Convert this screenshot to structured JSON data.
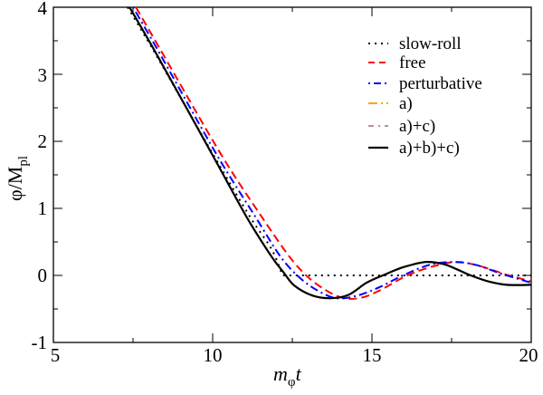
{
  "chart_data": {
    "type": "line",
    "title": "",
    "xlabel": "m_φ t",
    "ylabel": "φ/M_pl",
    "xlim": [
      5,
      20
    ],
    "ylim": [
      -1,
      4
    ],
    "grid": false,
    "legend_position": "upper right",
    "x_ticks": [
      "5",
      "10",
      "15",
      "20"
    ],
    "y_ticks": [
      "-1",
      "0",
      "1",
      "2",
      "3",
      "4"
    ],
    "series": [
      {
        "name": "slow-roll",
        "color": "#000000",
        "style": "dotted",
        "points": [
          [
            7.33,
            4.0
          ],
          [
            8.21,
            3.3
          ],
          [
            10.03,
            1.79
          ],
          [
            11.19,
            0.86
          ],
          [
            11.85,
            0.39
          ],
          [
            12.19,
            0.0
          ],
          [
            20.0,
            0.0
          ]
        ]
      },
      {
        "name": "free",
        "color": "#ff0000",
        "style": "dashed",
        "points": [
          [
            7.59,
            4.0
          ],
          [
            8.44,
            3.3
          ],
          [
            10.28,
            1.79
          ],
          [
            11.56,
            0.86
          ],
          [
            12.41,
            0.28
          ],
          [
            12.98,
            -0.02
          ],
          [
            13.55,
            -0.22
          ],
          [
            14.12,
            -0.34
          ],
          [
            14.69,
            -0.33
          ],
          [
            15.26,
            -0.22
          ],
          [
            16.11,
            0.0
          ],
          [
            16.96,
            0.14
          ],
          [
            17.67,
            0.2
          ],
          [
            18.38,
            0.14
          ],
          [
            19.23,
            0.01
          ],
          [
            20.0,
            -0.09
          ]
        ]
      },
      {
        "name": "perturbative",
        "color": "#0000ff",
        "style": "dash-dot",
        "points": [
          [
            7.5,
            4.0
          ],
          [
            8.35,
            3.3
          ],
          [
            10.14,
            1.79
          ],
          [
            11.36,
            0.86
          ],
          [
            12.13,
            0.28
          ],
          [
            12.7,
            -0.02
          ],
          [
            13.27,
            -0.22
          ],
          [
            13.89,
            -0.34
          ],
          [
            14.55,
            -0.3
          ],
          [
            15.26,
            -0.17
          ],
          [
            15.97,
            0.0
          ],
          [
            16.82,
            0.16
          ],
          [
            17.53,
            0.2
          ],
          [
            18.24,
            0.16
          ],
          [
            19.09,
            0.02
          ],
          [
            20.0,
            -0.11
          ]
        ]
      },
      {
        "name": "a)",
        "color": "#ffa500",
        "style": "dash-dot-long",
        "points": [
          [
            7.39,
            4.0
          ],
          [
            8.24,
            3.3
          ],
          [
            10.0,
            1.79
          ],
          [
            11.08,
            0.86
          ],
          [
            11.85,
            0.28
          ],
          [
            12.22,
            0.05
          ],
          [
            12.56,
            -0.15
          ],
          [
            13.13,
            -0.3
          ],
          [
            13.69,
            -0.34
          ],
          [
            14.26,
            -0.29
          ],
          [
            14.83,
            -0.11
          ],
          [
            15.34,
            0.0
          ],
          [
            15.97,
            0.12
          ],
          [
            16.68,
            0.2
          ],
          [
            17.24,
            0.17
          ],
          [
            17.67,
            0.09
          ],
          [
            18.1,
            0.0
          ],
          [
            18.66,
            -0.09
          ],
          [
            19.23,
            -0.14
          ],
          [
            20.0,
            -0.14
          ]
        ]
      },
      {
        "name": "a)+c)",
        "color": "#bc8f8f",
        "style": "dash-dot",
        "points": [
          [
            7.39,
            4.0
          ],
          [
            8.24,
            3.3
          ],
          [
            10.0,
            1.79
          ],
          [
            11.08,
            0.86
          ],
          [
            11.85,
            0.28
          ],
          [
            12.22,
            0.05
          ],
          [
            12.56,
            -0.15
          ],
          [
            13.13,
            -0.3
          ],
          [
            13.69,
            -0.34
          ],
          [
            14.26,
            -0.29
          ],
          [
            14.83,
            -0.11
          ],
          [
            15.34,
            0.0
          ],
          [
            15.97,
            0.12
          ],
          [
            16.68,
            0.2
          ],
          [
            17.24,
            0.17
          ],
          [
            17.67,
            0.09
          ],
          [
            18.1,
            0.0
          ],
          [
            18.66,
            -0.09
          ],
          [
            19.23,
            -0.14
          ],
          [
            20.0,
            -0.14
          ]
        ]
      },
      {
        "name": "a)+b)+c)",
        "color": "#000000",
        "style": "solid",
        "points": [
          [
            7.39,
            4.0
          ],
          [
            8.24,
            3.3
          ],
          [
            10.0,
            1.79
          ],
          [
            11.08,
            0.86
          ],
          [
            11.85,
            0.28
          ],
          [
            12.22,
            0.05
          ],
          [
            12.56,
            -0.15
          ],
          [
            13.13,
            -0.3
          ],
          [
            13.69,
            -0.34
          ],
          [
            14.26,
            -0.29
          ],
          [
            14.83,
            -0.11
          ],
          [
            15.34,
            0.0
          ],
          [
            15.97,
            0.12
          ],
          [
            16.68,
            0.2
          ],
          [
            17.24,
            0.17
          ],
          [
            17.67,
            0.09
          ],
          [
            18.1,
            0.0
          ],
          [
            18.66,
            -0.09
          ],
          [
            19.23,
            -0.14
          ],
          [
            20.0,
            -0.14
          ]
        ]
      }
    ]
  },
  "axes": {
    "x_tick_labels": [
      "5",
      "10",
      "15",
      "20"
    ],
    "y_tick_labels": [
      "-1",
      "0",
      "1",
      "2",
      "3",
      "4"
    ],
    "xlabel_main": "m",
    "xlabel_sub": "φ",
    "xlabel_tail": "t",
    "ylabel_main": "φ/M",
    "ylabel_sub": "pl"
  },
  "legend": {
    "items": [
      {
        "label": "slow-roll"
      },
      {
        "label": "free"
      },
      {
        "label": "perturbative"
      },
      {
        "label": "a)"
      },
      {
        "label": "a)+c)"
      },
      {
        "label": "a)+b)+c)"
      }
    ]
  }
}
